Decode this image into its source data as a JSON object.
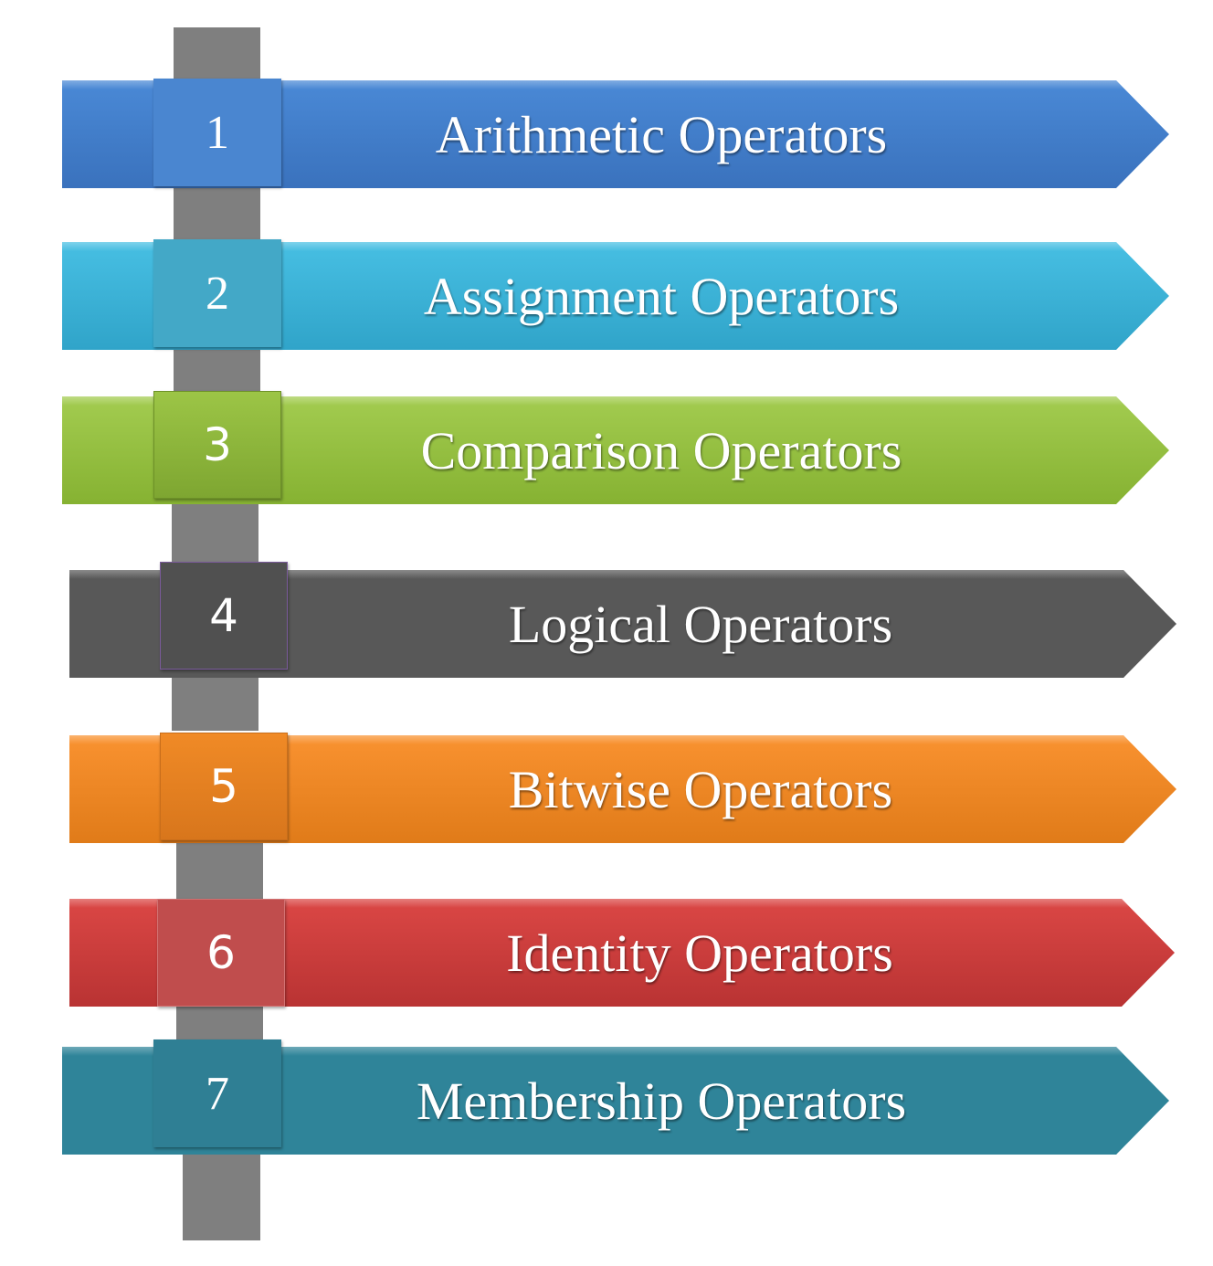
{
  "items": [
    {
      "number": "1",
      "label": "Arithmetic Operators",
      "color": "#3e7bc9",
      "box_color": "#4a86d0"
    },
    {
      "number": "2",
      "label": "Assignment Operators",
      "color": "#3bb0d6",
      "box_color": "#43a8c7"
    },
    {
      "number": "3",
      "label": "Comparison Operators",
      "color": "#93bf3c",
      "box_color": "#8ab43a"
    },
    {
      "number": "4",
      "label": "Logical Operators",
      "color": "#585858",
      "box_color": "#505050"
    },
    {
      "number": "5",
      "label": "Bitwise Operators",
      "color": "#f0861f",
      "box_color": "#e37f1f"
    },
    {
      "number": "6",
      "label": "Identity Operators",
      "color": "#cd3c3b",
      "box_color": "#c04d4d"
    },
    {
      "number": "7",
      "label": "Membership Operators",
      "color": "#2f8499",
      "box_color": "#2f7f94"
    }
  ],
  "post_color": "#7f7f7f"
}
